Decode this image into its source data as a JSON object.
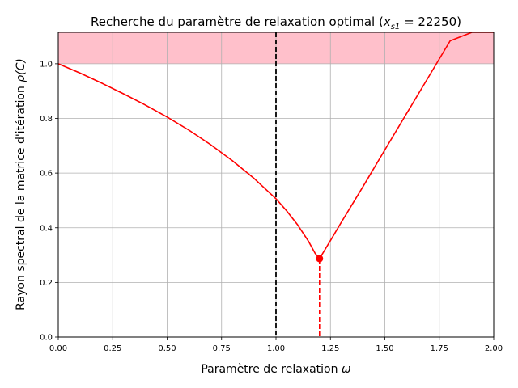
{
  "chart_data": {
    "type": "line",
    "title_main": "Recherche du paramètre de relaxation optimal (",
    "title_var": "x",
    "title_sub": "s1",
    "title_tail": " = 22250)",
    "xlabel_main": "Paramètre de relaxation ",
    "xlabel_symbol": "ω",
    "ylabel_main": "Rayon spectral de la matrice d'itération ",
    "ylabel_symbol": "ρ(C)",
    "xlim": [
      0,
      2
    ],
    "ylim": [
      0,
      1.115
    ],
    "grid": true,
    "x_ticks": [
      "0.00",
      "0.25",
      "0.50",
      "0.75",
      "1.00",
      "1.25",
      "1.50",
      "1.75",
      "2.00"
    ],
    "x_tick_values": [
      0,
      0.25,
      0.5,
      0.75,
      1.0,
      1.25,
      1.5,
      1.75,
      2.0
    ],
    "y_ticks": [
      "0.0",
      "0.2",
      "0.4",
      "0.6",
      "0.8",
      "1.0"
    ],
    "y_tick_values": [
      0,
      0.2,
      0.4,
      0.6,
      0.8,
      1.0
    ],
    "shaded_region": {
      "y_from": 1.0,
      "y_to": 1.115,
      "color": "#ffc0cb"
    },
    "reference_line": {
      "x": 1.0,
      "color": "#000000",
      "style": "dashed"
    },
    "optimum": {
      "x": 1.2,
      "y": 0.287,
      "color": "#ff0000",
      "dropline_style": "dashed"
    },
    "series": [
      {
        "color": "#ff0000",
        "x": [
          0.0,
          0.1,
          0.2,
          0.3,
          0.4,
          0.5,
          0.6,
          0.7,
          0.8,
          0.9,
          1.0,
          1.05,
          1.1,
          1.15,
          1.18,
          1.2,
          1.25,
          1.3,
          1.4,
          1.5,
          1.6,
          1.7,
          1.8,
          1.9,
          2.0
        ],
        "y": [
          1.0,
          0.966,
          0.929,
          0.89,
          0.849,
          0.805,
          0.757,
          0.704,
          0.645,
          0.58,
          0.506,
          0.461,
          0.41,
          0.35,
          0.306,
          0.287,
          0.353,
          0.42,
          0.551,
          0.685,
          0.818,
          0.951,
          1.084,
          1.115,
          1.115
        ]
      }
    ]
  }
}
